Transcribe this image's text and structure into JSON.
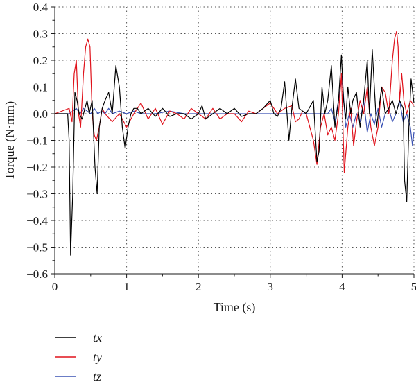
{
  "chart_data": {
    "type": "line",
    "xlabel": "Time (s)",
    "ylabel": "Torque (N·mm)",
    "xlim": [
      0,
      5
    ],
    "ylim": [
      -0.6,
      0.4
    ],
    "x_ticks": [
      0,
      1,
      2,
      3,
      4,
      5
    ],
    "x_tick_labels": [
      "0",
      "1",
      "2",
      "3",
      "4",
      "5"
    ],
    "y_ticks": [
      -0.6,
      -0.5,
      -0.4,
      -0.3,
      -0.2,
      -0.1,
      0.0,
      0.1,
      0.2,
      0.3,
      0.4
    ],
    "y_tick_labels": [
      "−0.6",
      "−0.5",
      "−0.4",
      "−0.3",
      "−0.2",
      "−0.1",
      "0.0",
      "0.1",
      "0.2",
      "0.3",
      "0.4"
    ],
    "grid": true,
    "legend_position": "bottom-left",
    "series": [
      {
        "name": "tx",
        "color": "#000000",
        "x": [
          0.0,
          0.18,
          0.2,
          0.22,
          0.25,
          0.28,
          0.31,
          0.34,
          0.38,
          0.42,
          0.45,
          0.48,
          0.52,
          0.56,
          0.59,
          0.62,
          0.66,
          0.7,
          0.75,
          0.8,
          0.85,
          0.9,
          0.94,
          0.98,
          1.02,
          1.06,
          1.1,
          1.15,
          1.2,
          1.3,
          1.4,
          1.5,
          1.6,
          1.7,
          1.8,
          1.9,
          2.0,
          2.05,
          2.1,
          2.2,
          2.3,
          2.4,
          2.5,
          2.6,
          2.7,
          2.8,
          2.9,
          3.0,
          3.05,
          3.1,
          3.15,
          3.2,
          3.26,
          3.3,
          3.35,
          3.4,
          3.5,
          3.6,
          3.65,
          3.68,
          3.72,
          3.76,
          3.8,
          3.85,
          3.9,
          3.95,
          3.99,
          4.02,
          4.05,
          4.08,
          4.12,
          4.15,
          4.2,
          4.25,
          4.3,
          4.35,
          4.38,
          4.42,
          4.48,
          4.55,
          4.6,
          4.65,
          4.7,
          4.75,
          4.8,
          4.85,
          4.87,
          4.9,
          4.93,
          4.96,
          5.0
        ],
        "values": [
          0.0,
          0.0,
          -0.1,
          -0.53,
          -0.3,
          0.08,
          0.05,
          0.0,
          -0.02,
          0.02,
          0.05,
          0.0,
          0.05,
          -0.2,
          -0.3,
          -0.05,
          0.02,
          0.05,
          0.08,
          0.0,
          0.18,
          0.1,
          -0.05,
          -0.13,
          -0.05,
          0.0,
          0.02,
          0.02,
          0.0,
          0.02,
          -0.01,
          0.02,
          -0.01,
          0.0,
          0.0,
          -0.02,
          0.0,
          0.03,
          -0.02,
          0.0,
          0.02,
          0.0,
          0.02,
          -0.01,
          0.0,
          0.0,
          0.02,
          0.05,
          0.0,
          -0.01,
          0.02,
          0.12,
          -0.1,
          0.02,
          0.13,
          0.02,
          0.0,
          0.05,
          -0.18,
          -0.14,
          0.1,
          0.0,
          0.05,
          0.18,
          -0.05,
          0.05,
          0.22,
          0.05,
          -0.02,
          0.1,
          0.0,
          0.05,
          0.08,
          -0.05,
          0.05,
          0.2,
          0.0,
          0.24,
          -0.05,
          0.1,
          0.0,
          0.02,
          0.05,
          0.0,
          0.05,
          0.02,
          -0.25,
          -0.33,
          -0.05,
          0.13,
          0.04
        ]
      },
      {
        "name": "ty",
        "color": "#e0121b",
        "x": [
          0.0,
          0.2,
          0.24,
          0.27,
          0.3,
          0.33,
          0.36,
          0.4,
          0.43,
          0.46,
          0.49,
          0.52,
          0.55,
          0.58,
          0.62,
          0.66,
          0.7,
          0.8,
          0.9,
          1.0,
          1.1,
          1.2,
          1.3,
          1.4,
          1.5,
          1.6,
          1.7,
          1.8,
          1.9,
          2.0,
          2.1,
          2.2,
          2.3,
          2.4,
          2.5,
          2.6,
          2.7,
          2.8,
          2.9,
          3.0,
          3.1,
          3.2,
          3.3,
          3.35,
          3.4,
          3.45,
          3.5,
          3.55,
          3.6,
          3.65,
          3.7,
          3.75,
          3.8,
          3.85,
          3.9,
          3.95,
          3.99,
          4.03,
          4.08,
          4.12,
          4.16,
          4.2,
          4.25,
          4.3,
          4.35,
          4.4,
          4.45,
          4.5,
          4.55,
          4.6,
          4.65,
          4.7,
          4.73,
          4.76,
          4.78,
          4.8,
          4.83,
          4.86,
          4.9,
          4.95,
          5.0
        ],
        "values": [
          0.0,
          0.02,
          -0.03,
          0.15,
          0.2,
          0.0,
          -0.05,
          0.15,
          0.25,
          0.28,
          0.25,
          0.0,
          -0.08,
          -0.1,
          -0.05,
          0.02,
          0.0,
          -0.03,
          0.0,
          -0.05,
          0.0,
          0.04,
          -0.02,
          0.02,
          -0.04,
          0.01,
          0.0,
          -0.02,
          0.02,
          0.0,
          -0.02,
          0.02,
          -0.02,
          0.0,
          0.0,
          -0.03,
          0.01,
          0.0,
          0.02,
          0.04,
          0.0,
          0.02,
          0.03,
          -0.03,
          -0.02,
          0.01,
          0.0,
          -0.05,
          -0.1,
          -0.19,
          -0.05,
          0.0,
          -0.08,
          -0.05,
          -0.1,
          0.0,
          0.15,
          -0.22,
          -0.05,
          0.02,
          -0.12,
          -0.03,
          0.05,
          0.0,
          0.1,
          -0.05,
          -0.12,
          -0.05,
          0.1,
          0.08,
          0.0,
          0.2,
          0.28,
          0.31,
          0.25,
          0.05,
          0.15,
          0.05,
          0.0,
          0.05,
          0.03
        ]
      },
      {
        "name": "tz",
        "color": "#3a52b4",
        "x": [
          0.0,
          0.2,
          0.25,
          0.3,
          0.35,
          0.4,
          0.45,
          0.5,
          0.55,
          0.6,
          0.65,
          0.7,
          0.75,
          0.8,
          0.9,
          1.0,
          1.1,
          1.2,
          1.4,
          1.6,
          1.8,
          2.0,
          2.2,
          2.4,
          2.6,
          2.8,
          3.0,
          3.2,
          3.4,
          3.5,
          3.6,
          3.7,
          3.8,
          3.85,
          3.9,
          3.95,
          4.0,
          4.05,
          4.1,
          4.15,
          4.2,
          4.25,
          4.3,
          4.35,
          4.4,
          4.45,
          4.5,
          4.55,
          4.6,
          4.65,
          4.7,
          4.75,
          4.8,
          4.85,
          4.9,
          4.95,
          4.98,
          5.0
        ],
        "values": [
          0.0,
          0.0,
          0.01,
          0.02,
          0.0,
          0.02,
          0.01,
          0.0,
          0.02,
          0.0,
          0.01,
          0.0,
          0.02,
          0.0,
          0.01,
          0.0,
          0.01,
          0.0,
          0.0,
          0.01,
          0.0,
          0.0,
          0.0,
          0.0,
          0.0,
          0.0,
          0.0,
          0.0,
          0.0,
          0.0,
          0.0,
          0.0,
          0.0,
          0.02,
          -0.03,
          0.05,
          0.14,
          -0.05,
          0.0,
          -0.05,
          0.0,
          -0.03,
          0.05,
          -0.07,
          0.0,
          -0.04,
          0.02,
          -0.05,
          0.0,
          0.02,
          -0.03,
          0.0,
          0.05,
          -0.03,
          0.0,
          -0.05,
          -0.12,
          -0.07
        ]
      }
    ]
  }
}
